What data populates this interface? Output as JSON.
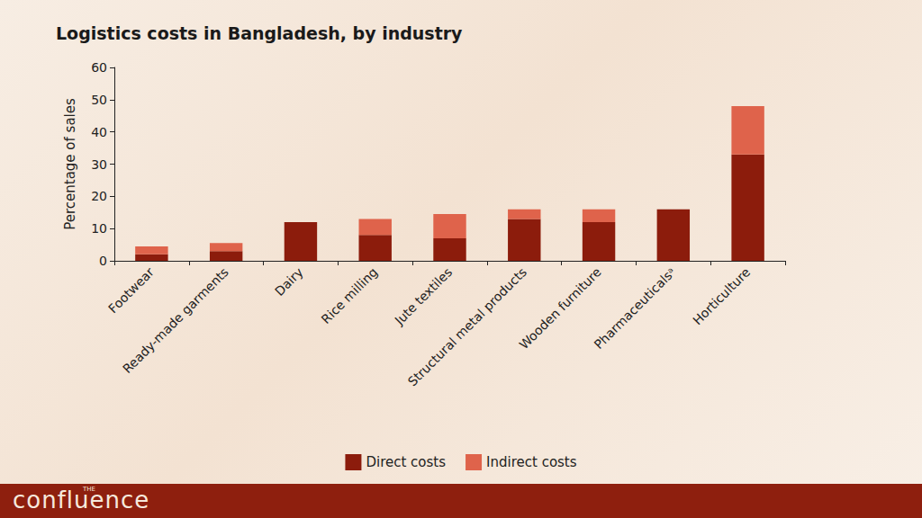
{
  "chart_data": {
    "type": "bar",
    "title": "Logistics costs in Bangladesh, by industry",
    "y_label": "Percentage of sales",
    "categories": [
      "Footwear",
      "Ready-made garments",
      "Dairy",
      "Rice milling",
      "Jute textiles",
      "Structural metal products",
      "Wooden furniture",
      "Pharmaceuticalsᵃ",
      "Horticulture"
    ],
    "series": [
      {
        "name": "Direct costs",
        "color": "#8c1c0c",
        "values": [
          2,
          3,
          12,
          8,
          7,
          13,
          12,
          16,
          33
        ]
      },
      {
        "name": "Indirect costs",
        "color": "#df634b",
        "values": [
          2.5,
          2.5,
          0,
          5,
          7.5,
          3,
          4,
          0,
          15
        ]
      }
    ],
    "stacked": true,
    "ylim": [
      0,
      60
    ],
    "yticks": [
      0,
      10,
      20,
      30,
      40,
      50,
      60
    ],
    "grid": false,
    "legend": "bottom",
    "footer": {
      "small": "THE",
      "text": "confluence"
    }
  }
}
